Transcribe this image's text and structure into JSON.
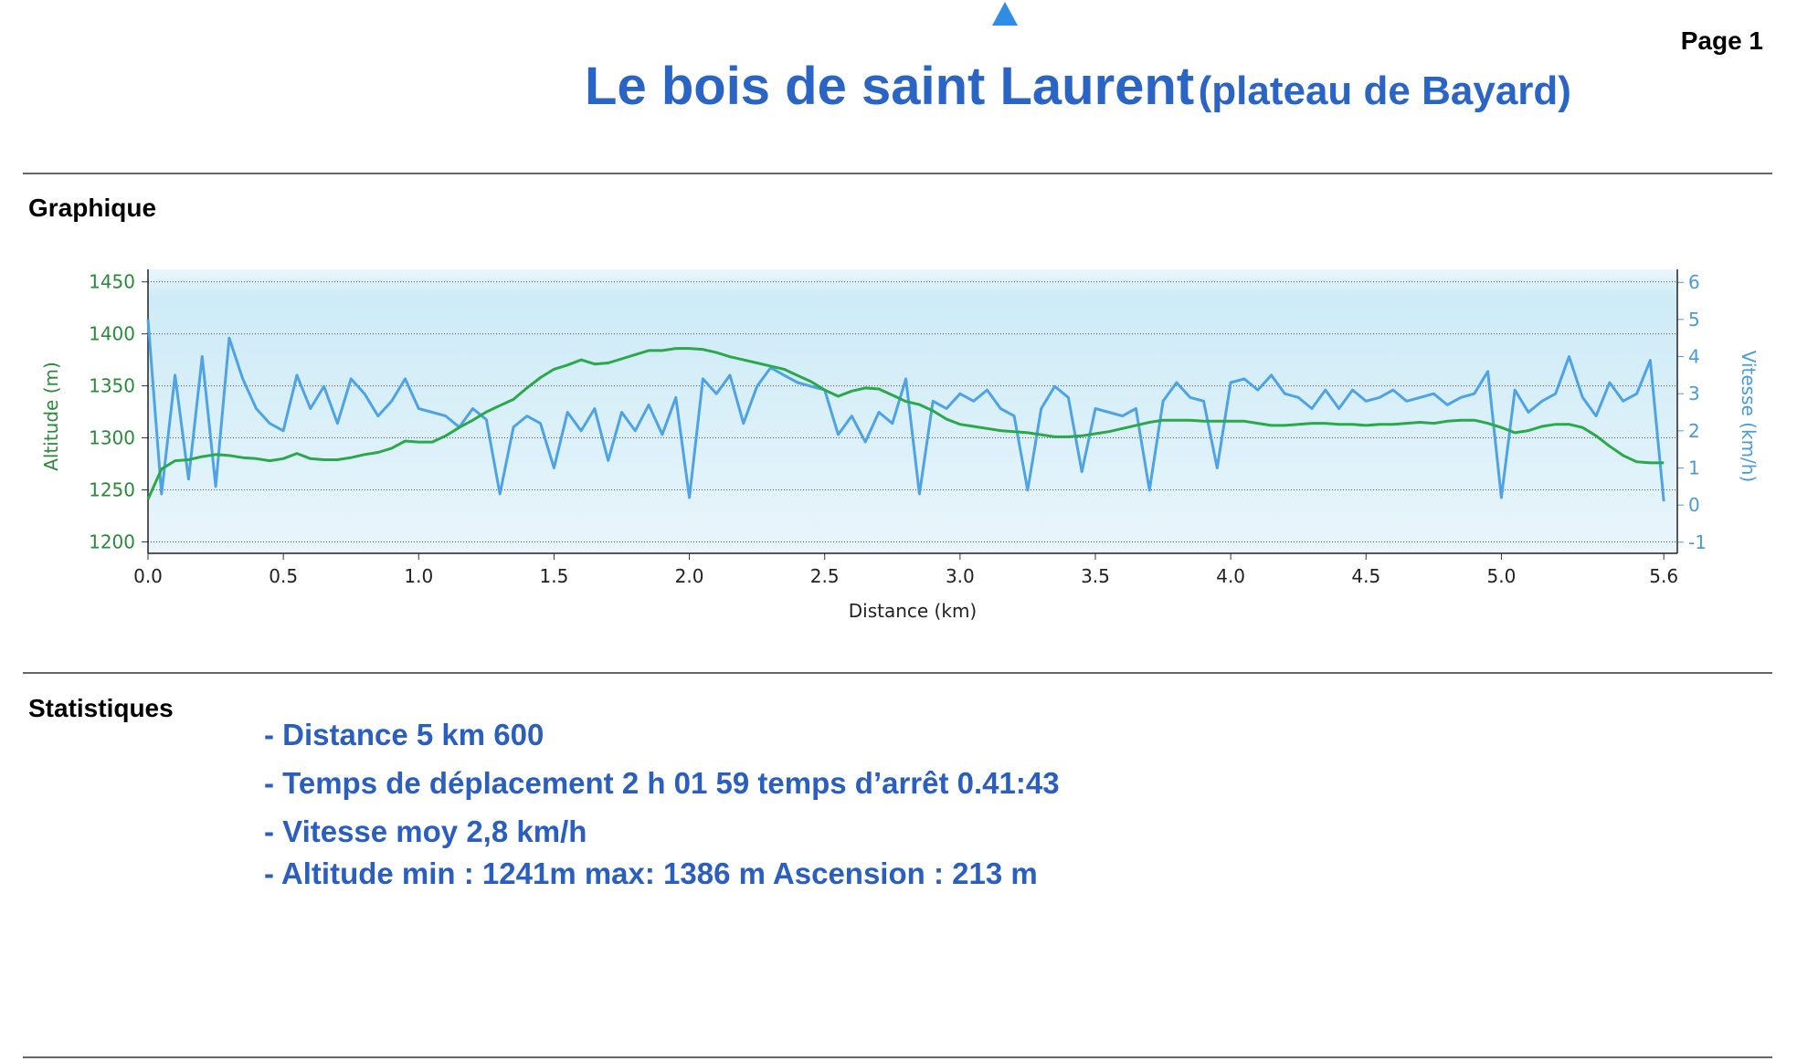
{
  "header": {
    "page": "Page 1",
    "title": "Le bois de saint Laurent",
    "subtitle": "(plateau de Bayard)"
  },
  "sections": {
    "graph": "Graphique",
    "stats": "Statistiques"
  },
  "stats": [
    "- Distance 5 km 600",
    "- Temps de déplacement 2 h 01 59 temps d’arrêt 0.41:43",
    "- Vitesse  moy 2,8 km/h",
    "- Altitude min : 1241m  max: 1386 m  Ascension : 213 m"
  ],
  "chart_data": {
    "type": "line",
    "xlabel": "Distance  (km)",
    "ylabel": "Altitude (m)",
    "y2label": "Vitesse (km/h)",
    "xlim": [
      0,
      5.65
    ],
    "xticks": [
      {
        "value": 0,
        "label": "0.0"
      },
      0.5,
      {
        "value": 1,
        "label": "1.0"
      },
      1.5,
      {
        "value": 2,
        "label": "2.0"
      },
      2.5,
      {
        "value": 3,
        "label": "3.0"
      },
      3.5,
      {
        "value": 4,
        "label": "4.0"
      },
      4.5,
      {
        "value": 5,
        "label": "5.0"
      },
      5.6
    ],
    "ylim": [
      1189,
      1462
    ],
    "yticks": [
      1200,
      1250,
      1300,
      1350,
      1400,
      1450
    ],
    "y2lim": [
      -1.3,
      6.35
    ],
    "y2ticks": [
      -1,
      0,
      1,
      2,
      3,
      4,
      5,
      6
    ],
    "grid": true,
    "x": [
      0,
      0.05,
      0.1,
      0.15,
      0.2,
      0.25,
      0.3,
      0.35,
      0.4,
      0.45,
      0.5,
      0.55,
      0.6,
      0.65,
      0.7,
      0.75,
      0.8,
      0.85,
      0.9,
      0.95,
      1,
      1.05,
      1.1,
      1.15,
      1.2,
      1.25,
      1.3,
      1.35,
      1.4,
      1.45,
      1.5,
      1.55,
      1.6,
      1.65,
      1.7,
      1.75,
      1.8,
      1.85,
      1.9,
      1.95,
      2,
      2.05,
      2.1,
      2.15,
      2.2,
      2.25,
      2.3,
      2.35,
      2.4,
      2.45,
      2.5,
      2.55,
      2.6,
      2.65,
      2.7,
      2.75,
      2.8,
      2.85,
      2.9,
      2.95,
      3,
      3.05,
      3.1,
      3.15,
      3.2,
      3.25,
      3.3,
      3.35,
      3.4,
      3.45,
      3.5,
      3.55,
      3.6,
      3.65,
      3.7,
      3.75,
      3.8,
      3.85,
      3.9,
      3.95,
      4,
      4.05,
      4.1,
      4.15,
      4.2,
      4.25,
      4.3,
      4.35,
      4.4,
      4.45,
      4.5,
      4.55,
      4.6,
      4.65,
      4.7,
      4.75,
      4.8,
      4.85,
      4.9,
      4.95,
      5,
      5.05,
      5.1,
      5.15,
      5.2,
      5.25,
      5.3,
      5.35,
      5.4,
      5.45,
      5.5,
      5.55,
      5.6
    ],
    "series": [
      {
        "color": "#2aa84a",
        "values": [
          1241,
          1270,
          1278,
          1279,
          1282,
          1284,
          1283,
          1281,
          1280,
          1278,
          1280,
          1285,
          1280,
          1279,
          1279,
          1281,
          1284,
          1286,
          1290,
          1297,
          1296,
          1296,
          1302,
          1310,
          1317,
          1325,
          1331,
          1337,
          1348,
          1358,
          1366,
          1370,
          1375,
          1371,
          1372,
          1376,
          1380,
          1384,
          1384,
          1386,
          1386,
          1385,
          1382,
          1378,
          1375,
          1372,
          1369,
          1366,
          1360,
          1354,
          1346,
          1340,
          1345,
          1348,
          1347,
          1341,
          1335,
          1332,
          1326,
          1318,
          1313,
          1311,
          1309,
          1307,
          1306,
          1305,
          1303,
          1301,
          1301,
          1302,
          1304,
          1306,
          1309,
          1312,
          1315,
          1317,
          1317,
          1317,
          1316,
          1316,
          1316,
          1316,
          1314,
          1312,
          1312,
          1313,
          1314,
          1314,
          1313,
          1313,
          1312,
          1313,
          1313,
          1314,
          1315,
          1314,
          1316,
          1317,
          1317,
          1314,
          1310,
          1305,
          1307,
          1311,
          1313,
          1313,
          1310,
          1302,
          1292,
          1283,
          1277,
          1276,
          1276
        ]
      },
      {
        "color": "#4da3e6",
        "axis": "y2",
        "values": [
          5.0,
          0.3,
          3.5,
          0.7,
          4.0,
          0.5,
          4.5,
          3.4,
          2.6,
          2.2,
          2.0,
          3.5,
          2.6,
          3.2,
          2.2,
          3.4,
          3.0,
          2.4,
          2.8,
          3.4,
          2.6,
          2.5,
          2.4,
          2.1,
          2.6,
          2.3,
          0.3,
          2.1,
          2.4,
          2.2,
          1.0,
          2.5,
          2.0,
          2.6,
          1.2,
          2.5,
          2.0,
          2.7,
          1.9,
          2.9,
          0.2,
          3.4,
          3.0,
          3.5,
          2.2,
          3.2,
          3.7,
          3.5,
          3.3,
          3.2,
          3.1,
          1.9,
          2.4,
          1.7,
          2.5,
          2.2,
          3.4,
          0.3,
          2.8,
          2.6,
          3.0,
          2.8,
          3.1,
          2.6,
          2.4,
          0.4,
          2.6,
          3.2,
          2.9,
          0.9,
          2.6,
          2.5,
          2.4,
          2.6,
          0.4,
          2.8,
          3.3,
          2.9,
          2.8,
          1.0,
          3.3,
          3.4,
          3.1,
          3.5,
          3.0,
          2.9,
          2.6,
          3.1,
          2.6,
          3.1,
          2.8,
          2.9,
          3.1,
          2.8,
          2.9,
          3.0,
          2.7,
          2.9,
          3.0,
          3.6,
          0.2,
          3.1,
          2.5,
          2.8,
          3.0,
          4.0,
          2.9,
          2.4,
          3.3,
          2.8,
          3.0,
          3.9,
          0.1
        ]
      }
    ]
  }
}
